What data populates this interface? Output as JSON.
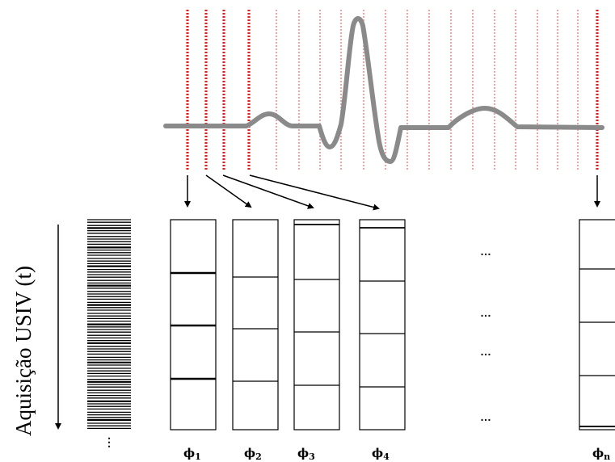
{
  "y_axis_label": "Aquisição USIV (t)",
  "barcode_ellipsis": "⋮",
  "phases": [
    {
      "symbol": "ϕ",
      "subscript": "1"
    },
    {
      "symbol": "ϕ",
      "subscript": "2"
    },
    {
      "symbol": "ϕ",
      "subscript": "3"
    },
    {
      "symbol": "ϕ",
      "subscript": "4"
    },
    {
      "symbol": "ϕ",
      "subscript": "n"
    }
  ],
  "ellipsis_marks": [
    "…",
    "…",
    "…",
    "…"
  ],
  "colors": {
    "ecg_trace": "#8a8a8a",
    "sampling_lines": "#e0201c",
    "ink": "#000000"
  }
}
